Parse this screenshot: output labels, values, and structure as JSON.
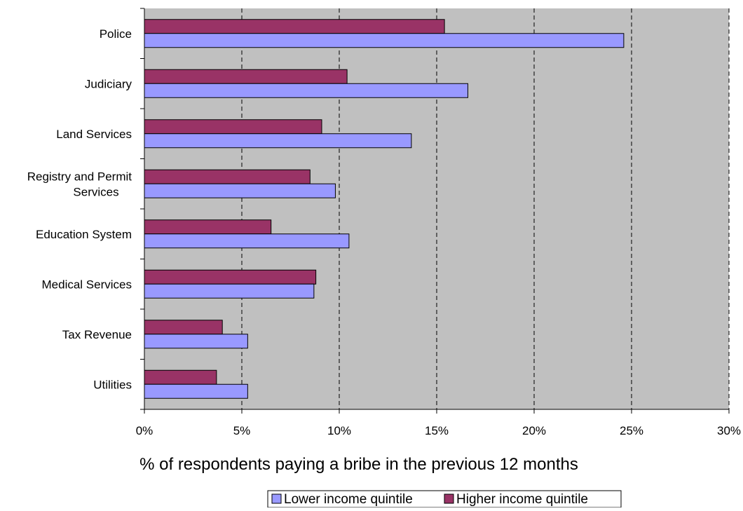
{
  "chart_data": {
    "type": "bar",
    "orientation": "horizontal",
    "categories": [
      "Police",
      "Judiciary",
      "Land Services",
      "Registry and Permit Services",
      "Education System",
      "Medical Services",
      "Tax Revenue",
      "Utilities"
    ],
    "series": [
      {
        "name": "Higher income quintile",
        "color": "#993366",
        "values": [
          15.4,
          10.4,
          9.1,
          8.5,
          6.5,
          8.8,
          4.0,
          3.7
        ]
      },
      {
        "name": "Lower income quintile",
        "color": "#9999ff",
        "values": [
          24.6,
          16.6,
          13.7,
          9.8,
          10.5,
          8.7,
          5.3,
          5.3
        ]
      }
    ],
    "xlabel": "% of respondents paying a bribe in the previous 12 months",
    "ylabel": "",
    "xlim": [
      0,
      30
    ],
    "xticks": [
      "0%",
      "5%",
      "10%",
      "15%",
      "20%",
      "25%",
      "30%"
    ],
    "grid": "vertical dashed",
    "plot_background": "#c0c0c0",
    "legend": {
      "placement": "bottom-right",
      "items": [
        "Lower income quintile",
        "Higher income quintile"
      ]
    }
  }
}
